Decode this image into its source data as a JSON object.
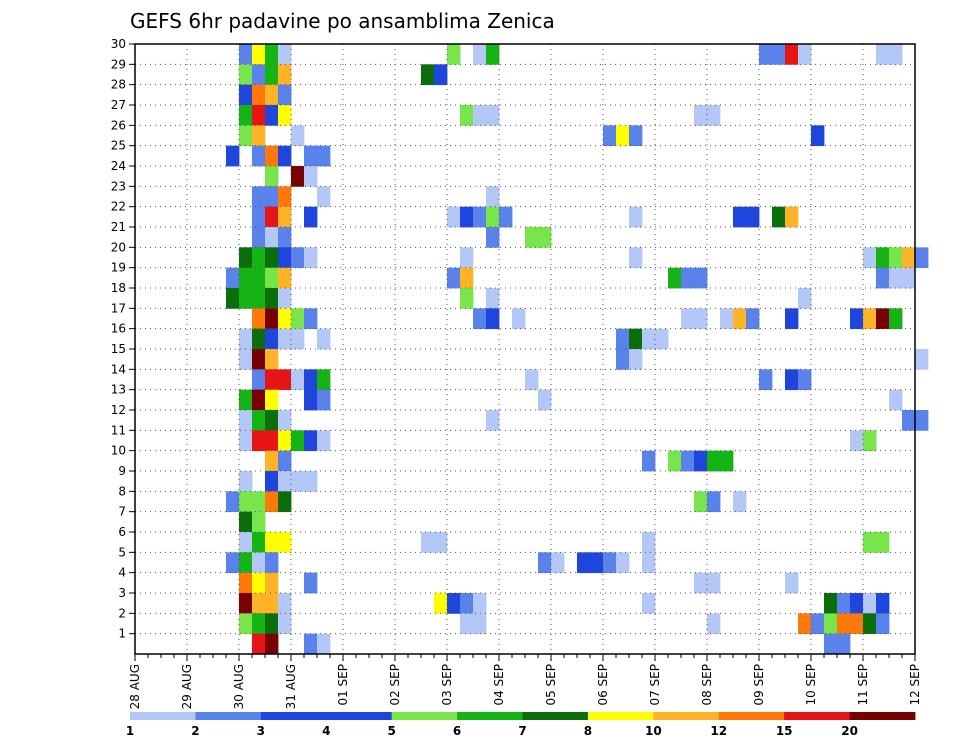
{
  "chart_data": {
    "type": "heatmap",
    "title": "GEFS 6hr padavine po ansamblima Zenica",
    "x_start": "28 AUG 00Z",
    "x_step_hours": 6,
    "x_count": 60,
    "x_tick_labels": [
      "28 AUG",
      "29 AUG",
      "30 AUG",
      "31 AUG",
      "01 SEP",
      "02 SEP",
      "03 SEP",
      "04 SEP",
      "05 SEP",
      "06 SEP",
      "07 SEP",
      "08 SEP",
      "09 SEP",
      "10 SEP",
      "11 SEP",
      "12 SEP"
    ],
    "y_tick_labels": [
      "1",
      "2",
      "3",
      "4",
      "5",
      "6",
      "7",
      "8",
      "9",
      "10",
      "11",
      "12",
      "13",
      "14",
      "15",
      "16",
      "17",
      "18",
      "19",
      "20",
      "21",
      "22",
      "23",
      "24",
      "25",
      "26",
      "27",
      "28",
      "29",
      "30"
    ],
    "y_range": [
      0,
      30
    ],
    "grid": true,
    "legend_position": "bottom",
    "legend_labels": [
      "1",
      "2",
      "3",
      "4",
      "5",
      "6",
      "7",
      "8",
      "10",
      "12",
      "15",
      "20"
    ],
    "colorbar": [
      "#b4c8f8",
      "#5a82eb",
      "#1e46dc",
      "#1e46dc",
      "#78e64b",
      "#14b414",
      "#0a6e0a",
      "#ffff00",
      "#ffb428",
      "#ff780a",
      "#e61414",
      "#780000"
    ],
    "cell_colors": [
      "#b4c8f8",
      "#5a82eb",
      "#1e46dc",
      "#78e64b",
      "#14b414",
      "#0a6e0a",
      "#ffff00",
      "#ffb428",
      "#ff780a",
      "#e61414",
      "#780000"
    ],
    "cells": [
      [
        8,
        30,
        1
      ],
      [
        9,
        30,
        6
      ],
      [
        10,
        30,
        4
      ],
      [
        11,
        30,
        0
      ],
      [
        24,
        30,
        3
      ],
      [
        26,
        30,
        0
      ],
      [
        27,
        30,
        4
      ],
      [
        48,
        30,
        1
      ],
      [
        49,
        30,
        1
      ],
      [
        50,
        30,
        9
      ],
      [
        51,
        30,
        0
      ],
      [
        57,
        30,
        0
      ],
      [
        58,
        30,
        0
      ],
      [
        8,
        29,
        3
      ],
      [
        9,
        29,
        1
      ],
      [
        10,
        29,
        4
      ],
      [
        11,
        29,
        7
      ],
      [
        22,
        29,
        5
      ],
      [
        23,
        29,
        2
      ],
      [
        8,
        28,
        2
      ],
      [
        9,
        28,
        8
      ],
      [
        10,
        28,
        7
      ],
      [
        11,
        28,
        1
      ],
      [
        8,
        27,
        4
      ],
      [
        9,
        27,
        9
      ],
      [
        10,
        27,
        2
      ],
      [
        11,
        27,
        6
      ],
      [
        25,
        27,
        3
      ],
      [
        26,
        27,
        0
      ],
      [
        27,
        27,
        0
      ],
      [
        43,
        27,
        0
      ],
      [
        44,
        27,
        0
      ],
      [
        8,
        26,
        3
      ],
      [
        9,
        26,
        7
      ],
      [
        12,
        26,
        0
      ],
      [
        36,
        26,
        1
      ],
      [
        37,
        26,
        6
      ],
      [
        38,
        26,
        1
      ],
      [
        52,
        26,
        2
      ],
      [
        7,
        25,
        2
      ],
      [
        9,
        25,
        1
      ],
      [
        10,
        25,
        8
      ],
      [
        11,
        25,
        2
      ],
      [
        13,
        25,
        1
      ],
      [
        14,
        25,
        1
      ],
      [
        10,
        24,
        3
      ],
      [
        12,
        24,
        10
      ],
      [
        13,
        24,
        0
      ],
      [
        9,
        23,
        1
      ],
      [
        10,
        23,
        1
      ],
      [
        11,
        23,
        8
      ],
      [
        14,
        23,
        0
      ],
      [
        27,
        23,
        0
      ],
      [
        9,
        22,
        1
      ],
      [
        10,
        22,
        9
      ],
      [
        11,
        22,
        7
      ],
      [
        13,
        22,
        2
      ],
      [
        24,
        22,
        0
      ],
      [
        25,
        22,
        2
      ],
      [
        26,
        22,
        1
      ],
      [
        27,
        22,
        3
      ],
      [
        28,
        22,
        1
      ],
      [
        38,
        22,
        0
      ],
      [
        46,
        22,
        2
      ],
      [
        47,
        22,
        2
      ],
      [
        49,
        22,
        5
      ],
      [
        50,
        22,
        7
      ],
      [
        9,
        21,
        1
      ],
      [
        10,
        21,
        0
      ],
      [
        11,
        21,
        1
      ],
      [
        27,
        21,
        1
      ],
      [
        30,
        21,
        3
      ],
      [
        31,
        21,
        3
      ],
      [
        8,
        20,
        5
      ],
      [
        9,
        20,
        4
      ],
      [
        10,
        20,
        5
      ],
      [
        11,
        20,
        2
      ],
      [
        12,
        20,
        1
      ],
      [
        13,
        20,
        0
      ],
      [
        25,
        20,
        0
      ],
      [
        38,
        20,
        0
      ],
      [
        56,
        20,
        0
      ],
      [
        57,
        20,
        4
      ],
      [
        58,
        20,
        3
      ],
      [
        59,
        20,
        7
      ],
      [
        60,
        20,
        1
      ],
      [
        7,
        19,
        1
      ],
      [
        8,
        19,
        4
      ],
      [
        9,
        19,
        4
      ],
      [
        10,
        19,
        3
      ],
      [
        11,
        19,
        7
      ],
      [
        24,
        19,
        1
      ],
      [
        25,
        19,
        7
      ],
      [
        41,
        19,
        4
      ],
      [
        42,
        19,
        1
      ],
      [
        43,
        19,
        1
      ],
      [
        57,
        19,
        1
      ],
      [
        58,
        19,
        0
      ],
      [
        59,
        19,
        0
      ],
      [
        7,
        18,
        5
      ],
      [
        8,
        18,
        4
      ],
      [
        9,
        18,
        4
      ],
      [
        10,
        18,
        5
      ],
      [
        11,
        18,
        0
      ],
      [
        25,
        18,
        3
      ],
      [
        27,
        18,
        0
      ],
      [
        51,
        18,
        0
      ],
      [
        9,
        17,
        8
      ],
      [
        10,
        17,
        10
      ],
      [
        11,
        17,
        6
      ],
      [
        12,
        17,
        3
      ],
      [
        13,
        17,
        1
      ],
      [
        26,
        17,
        1
      ],
      [
        27,
        17,
        2
      ],
      [
        29,
        17,
        0
      ],
      [
        42,
        17,
        0
      ],
      [
        43,
        17,
        0
      ],
      [
        45,
        17,
        0
      ],
      [
        46,
        17,
        7
      ],
      [
        47,
        17,
        1
      ],
      [
        50,
        17,
        2
      ],
      [
        55,
        17,
        2
      ],
      [
        56,
        17,
        7
      ],
      [
        57,
        17,
        10
      ],
      [
        58,
        17,
        4
      ],
      [
        8,
        16,
        0
      ],
      [
        9,
        16,
        5
      ],
      [
        10,
        16,
        2
      ],
      [
        11,
        16,
        0
      ],
      [
        12,
        16,
        0
      ],
      [
        14,
        16,
        0
      ],
      [
        37,
        16,
        1
      ],
      [
        38,
        16,
        5
      ],
      [
        39,
        16,
        0
      ],
      [
        40,
        16,
        0
      ],
      [
        8,
        15,
        0
      ],
      [
        9,
        15,
        10
      ],
      [
        10,
        15,
        7
      ],
      [
        37,
        15,
        1
      ],
      [
        38,
        15,
        0
      ],
      [
        60,
        15,
        0
      ],
      [
        9,
        14,
        1
      ],
      [
        10,
        14,
        9
      ],
      [
        11,
        14,
        9
      ],
      [
        12,
        14,
        0
      ],
      [
        13,
        14,
        2
      ],
      [
        14,
        14,
        4
      ],
      [
        30,
        14,
        0
      ],
      [
        48,
        14,
        1
      ],
      [
        50,
        14,
        2
      ],
      [
        51,
        14,
        1
      ],
      [
        8,
        13,
        4
      ],
      [
        9,
        13,
        10
      ],
      [
        10,
        13,
        6
      ],
      [
        13,
        13,
        2
      ],
      [
        14,
        13,
        1
      ],
      [
        31,
        13,
        0
      ],
      [
        58,
        13,
        0
      ],
      [
        8,
        12,
        0
      ],
      [
        9,
        12,
        4
      ],
      [
        10,
        12,
        5
      ],
      [
        11,
        12,
        0
      ],
      [
        27,
        12,
        0
      ],
      [
        59,
        12,
        1
      ],
      [
        60,
        12,
        1
      ],
      [
        8,
        11,
        0
      ],
      [
        9,
        11,
        9
      ],
      [
        10,
        11,
        9
      ],
      [
        11,
        11,
        6
      ],
      [
        12,
        11,
        4
      ],
      [
        13,
        11,
        2
      ],
      [
        14,
        11,
        0
      ],
      [
        55,
        11,
        0
      ],
      [
        56,
        11,
        3
      ],
      [
        10,
        10,
        7
      ],
      [
        11,
        10,
        1
      ],
      [
        39,
        10,
        1
      ],
      [
        41,
        10,
        3
      ],
      [
        42,
        10,
        1
      ],
      [
        43,
        10,
        2
      ],
      [
        44,
        10,
        4
      ],
      [
        45,
        10,
        4
      ],
      [
        8,
        9,
        0
      ],
      [
        10,
        9,
        2
      ],
      [
        11,
        9,
        0
      ],
      [
        12,
        9,
        0
      ],
      [
        13,
        9,
        0
      ],
      [
        7,
        8,
        1
      ],
      [
        8,
        8,
        3
      ],
      [
        9,
        8,
        3
      ],
      [
        10,
        8,
        8
      ],
      [
        11,
        8,
        5
      ],
      [
        43,
        8,
        3
      ],
      [
        44,
        8,
        1
      ],
      [
        46,
        8,
        0
      ],
      [
        8,
        7,
        5
      ],
      [
        9,
        7,
        3
      ],
      [
        8,
        6,
        0
      ],
      [
        9,
        6,
        4
      ],
      [
        10,
        6,
        6
      ],
      [
        11,
        6,
        6
      ],
      [
        22,
        6,
        0
      ],
      [
        23,
        6,
        0
      ],
      [
        39,
        6,
        0
      ],
      [
        56,
        6,
        3
      ],
      [
        57,
        6,
        3
      ],
      [
        7,
        5,
        1
      ],
      [
        8,
        5,
        4
      ],
      [
        9,
        5,
        0
      ],
      [
        10,
        5,
        1
      ],
      [
        31,
        5,
        1
      ],
      [
        32,
        5,
        0
      ],
      [
        34,
        5,
        2
      ],
      [
        35,
        5,
        2
      ],
      [
        36,
        5,
        1
      ],
      [
        37,
        5,
        0
      ],
      [
        39,
        5,
        0
      ],
      [
        8,
        4,
        8
      ],
      [
        9,
        4,
        6
      ],
      [
        10,
        4,
        7
      ],
      [
        13,
        4,
        1
      ],
      [
        43,
        4,
        0
      ],
      [
        44,
        4,
        0
      ],
      [
        50,
        4,
        0
      ],
      [
        8,
        3,
        10
      ],
      [
        9,
        3,
        7
      ],
      [
        10,
        3,
        7
      ],
      [
        11,
        3,
        0
      ],
      [
        23,
        3,
        6
      ],
      [
        24,
        3,
        2
      ],
      [
        25,
        3,
        1
      ],
      [
        26,
        3,
        0
      ],
      [
        39,
        3,
        0
      ],
      [
        53,
        3,
        5
      ],
      [
        54,
        3,
        1
      ],
      [
        55,
        3,
        2
      ],
      [
        56,
        3,
        0
      ],
      [
        57,
        3,
        2
      ],
      [
        8,
        2,
        3
      ],
      [
        9,
        2,
        4
      ],
      [
        10,
        2,
        5
      ],
      [
        11,
        2,
        0
      ],
      [
        25,
        2,
        0
      ],
      [
        26,
        2,
        0
      ],
      [
        44,
        2,
        0
      ],
      [
        51,
        2,
        8
      ],
      [
        52,
        2,
        1
      ],
      [
        53,
        2,
        3
      ],
      [
        54,
        2,
        8
      ],
      [
        55,
        2,
        8
      ],
      [
        56,
        2,
        5
      ],
      [
        57,
        2,
        1
      ],
      [
        9,
        1,
        9
      ],
      [
        10,
        1,
        10
      ],
      [
        13,
        1,
        1
      ],
      [
        14,
        1,
        0
      ],
      [
        53,
        1,
        1
      ],
      [
        54,
        1,
        1
      ]
    ]
  }
}
